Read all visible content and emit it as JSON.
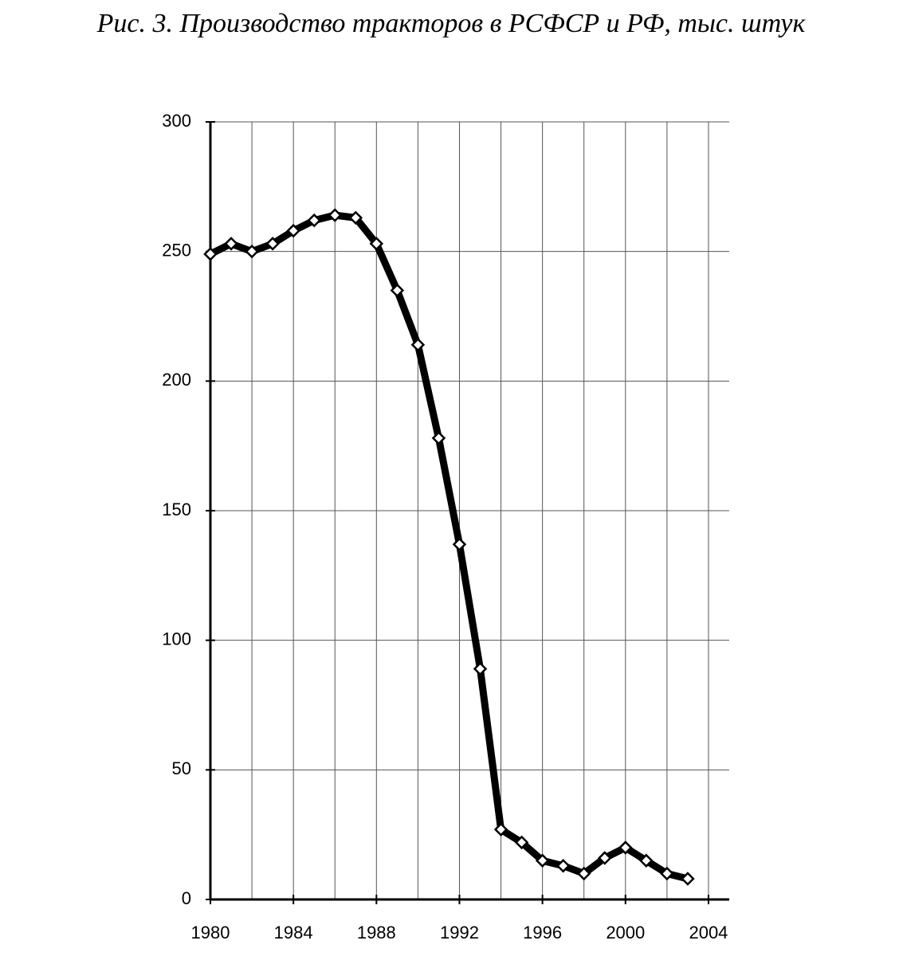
{
  "chart_data": {
    "type": "line",
    "title": "Рис. 3. Производство тракторов в РСФСР и РФ, тыс. штук",
    "x": [
      1980,
      1981,
      1982,
      1983,
      1984,
      1985,
      1986,
      1987,
      1988,
      1989,
      1990,
      1991,
      1992,
      1993,
      1994,
      1995,
      1996,
      1997,
      1998,
      1999,
      2000,
      2001,
      2002,
      2003
    ],
    "series": [
      {
        "color": "#000000",
        "values": [
          249,
          253,
          250,
          253,
          258,
          262,
          264,
          263,
          253,
          235,
          214,
          178,
          137,
          89,
          27,
          22,
          15,
          13,
          10,
          16,
          20,
          15,
          10,
          8
        ]
      }
    ],
    "xlim": [
      1980,
      2005
    ],
    "xticks": [
      1980,
      1984,
      1988,
      1992,
      1996,
      2000,
      2004
    ],
    "x_gridlines": [
      1982,
      1984,
      1986,
      1988,
      1990,
      1992,
      1994,
      1996,
      1998,
      2000,
      2002,
      2004
    ],
    "ylim": [
      0,
      300
    ],
    "yticks": [
      0,
      50,
      100,
      150,
      200,
      250,
      300
    ],
    "grid": true
  }
}
